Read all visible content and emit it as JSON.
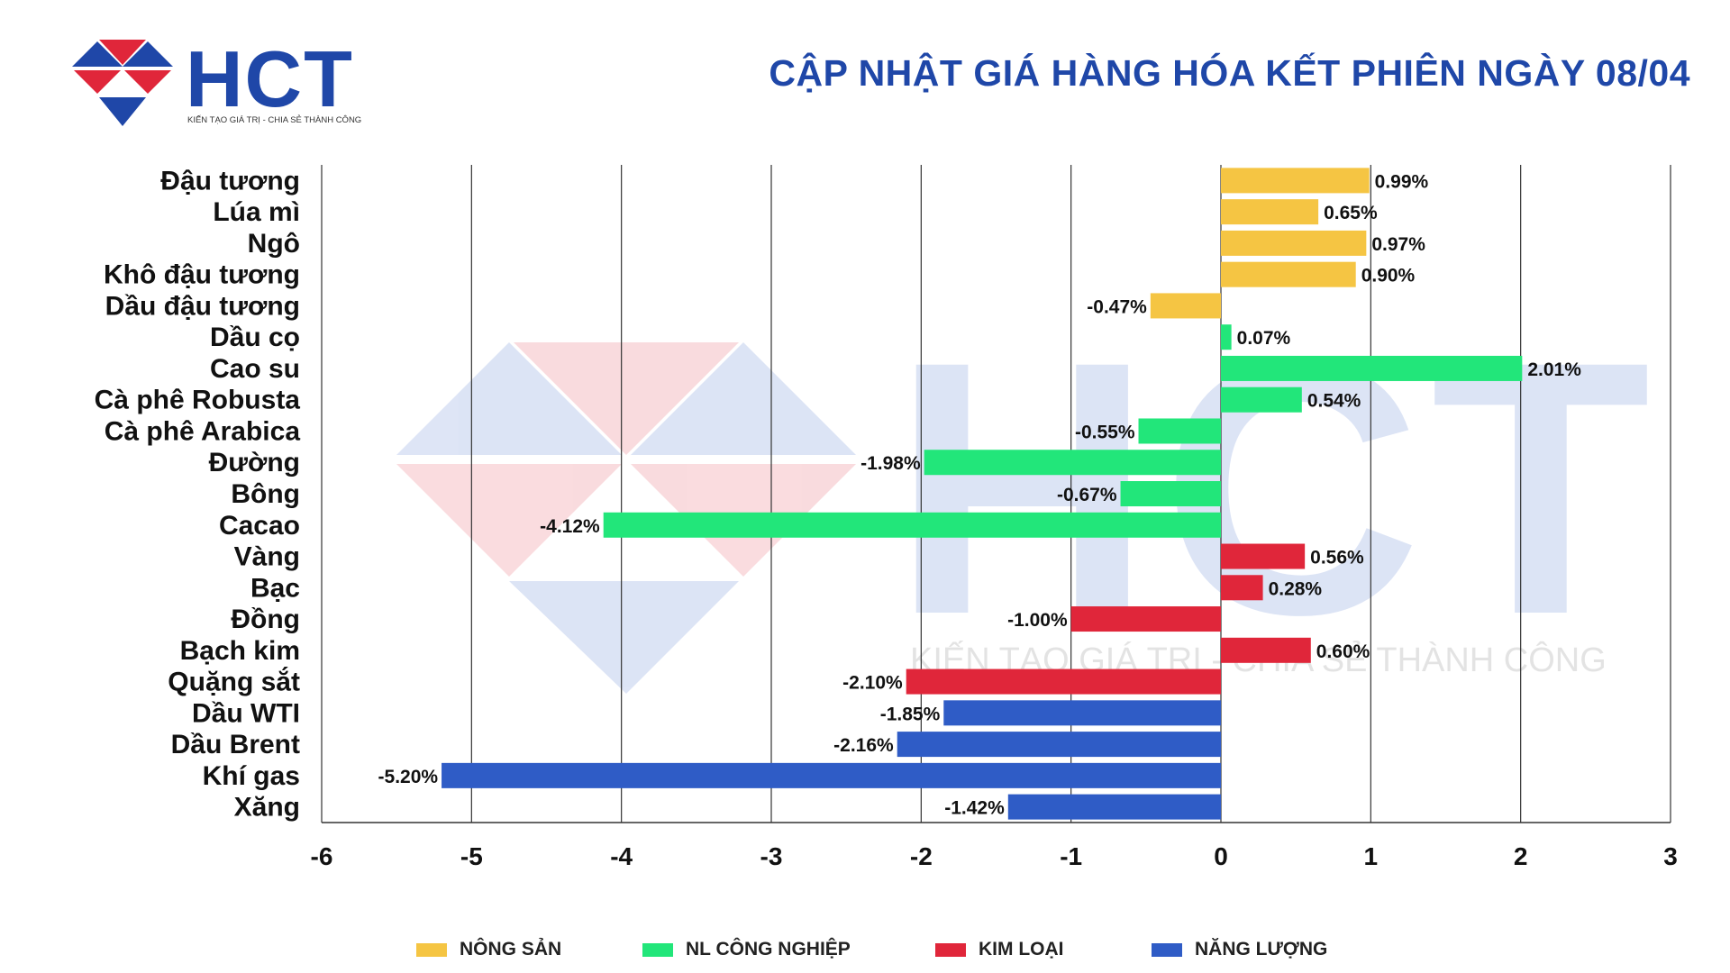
{
  "header": {
    "logo_text": "HCT",
    "logo_tagline": "KIẾN TẠO GIÁ TRỊ - CHIA SẺ THÀNH CÔNG",
    "title": "CẬP NHẬT GIÁ HÀNG HÓA KẾT PHIÊN NGÀY 08/04"
  },
  "watermark": {
    "text": "HCT",
    "tagline": "KIẾN TẠO GIÁ TRỊ - CHIA SẺ THÀNH CÔNG"
  },
  "colors": {
    "title": "#1f47a8",
    "nong_san": "#f5c543",
    "nl_cong_nghiep": "#22e67a",
    "kim_loai": "#e0263a",
    "nang_luong": "#2f5cc6",
    "grid": "#333333"
  },
  "chart_data": {
    "type": "bar",
    "orientation": "horizontal",
    "title": "CẬP NHẬT GIÁ HÀNG HÓA KẾT PHIÊN NGÀY 08/04",
    "xlabel": "",
    "ylabel": "",
    "xlim": [
      -6,
      3
    ],
    "xticks": [
      -6,
      -5,
      -4,
      -3,
      -2,
      -1,
      0,
      1,
      2,
      3
    ],
    "grid": "vertical",
    "legend_position": "bottom",
    "groups": [
      {
        "key": "nong_san",
        "name": "NÔNG SẢN"
      },
      {
        "key": "nl_cong_nghiep",
        "name": "NL CÔNG NGHIỆP"
      },
      {
        "key": "kim_loai",
        "name": "KIM LOẠI"
      },
      {
        "key": "nang_luong",
        "name": "NĂNG LƯỢNG"
      }
    ],
    "items": [
      {
        "name": "Đậu tương",
        "value": 0.99,
        "label": "0.99%",
        "group": "nong_san"
      },
      {
        "name": "Lúa mì",
        "value": 0.65,
        "label": "0.65%",
        "group": "nong_san"
      },
      {
        "name": "Ngô",
        "value": 0.97,
        "label": "0.97%",
        "group": "nong_san"
      },
      {
        "name": "Khô đậu tương",
        "value": 0.9,
        "label": "0.90%",
        "group": "nong_san"
      },
      {
        "name": "Dầu đậu tương",
        "value": -0.47,
        "label": "-0.47%",
        "group": "nong_san"
      },
      {
        "name": "Dầu cọ",
        "value": 0.07,
        "label": "0.07%",
        "group": "nl_cong_nghiep"
      },
      {
        "name": "Cao su",
        "value": 2.01,
        "label": "2.01%",
        "group": "nl_cong_nghiep"
      },
      {
        "name": "Cà phê Robusta",
        "value": 0.54,
        "label": "0.54%",
        "group": "nl_cong_nghiep"
      },
      {
        "name": "Cà phê Arabica",
        "value": -0.55,
        "label": "-0.55%",
        "group": "nl_cong_nghiep"
      },
      {
        "name": "Đường",
        "value": -1.98,
        "label": "-1.98%",
        "group": "nl_cong_nghiep"
      },
      {
        "name": "Bông",
        "value": -0.67,
        "label": "-0.67%",
        "group": "nl_cong_nghiep"
      },
      {
        "name": "Cacao",
        "value": -4.12,
        "label": "-4.12%",
        "group": "nl_cong_nghiep"
      },
      {
        "name": "Vàng",
        "value": 0.56,
        "label": "0.56%",
        "group": "kim_loai"
      },
      {
        "name": "Bạc",
        "value": 0.28,
        "label": "0.28%",
        "group": "kim_loai"
      },
      {
        "name": "Đồng",
        "value": -1.0,
        "label": "-1.00%",
        "group": "kim_loai"
      },
      {
        "name": "Bạch kim",
        "value": 0.6,
        "label": "0.60%",
        "group": "kim_loai"
      },
      {
        "name": "Quặng sắt",
        "value": -2.1,
        "label": "-2.10%",
        "group": "kim_loai"
      },
      {
        "name": "Dầu WTI",
        "value": -1.85,
        "label": "-1.85%",
        "group": "nang_luong"
      },
      {
        "name": "Dầu Brent",
        "value": -2.16,
        "label": "-2.16%",
        "group": "nang_luong"
      },
      {
        "name": "Khí gas",
        "value": -5.2,
        "label": "-5.20%",
        "group": "nang_luong"
      },
      {
        "name": "Xăng",
        "value": -1.42,
        "label": "-1.42%",
        "group": "nang_luong"
      }
    ]
  }
}
